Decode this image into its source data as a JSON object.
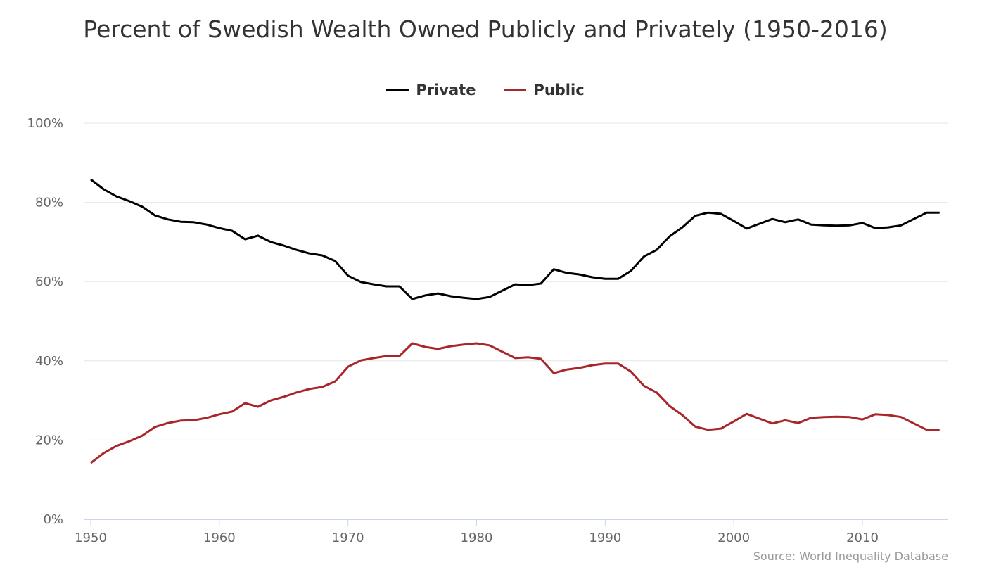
{
  "chart_data": {
    "type": "line",
    "title": "Percent of Swedish Wealth Owned Publicly and Privately (1950-2016)",
    "source": "Source: World Inequality Database",
    "legend_position": "top",
    "grid": true,
    "xlim": [
      1950,
      2016
    ],
    "ylim": [
      0,
      100
    ],
    "x_ticks": [
      "1950",
      "1960",
      "1970",
      "1980",
      "1990",
      "2000",
      "2010"
    ],
    "y_ticks": [
      "0%",
      "20%",
      "40%",
      "60%",
      "80%",
      "100%"
    ],
    "x": [
      1950,
      1951,
      1952,
      1953,
      1954,
      1955,
      1956,
      1957,
      1958,
      1959,
      1960,
      1961,
      1962,
      1963,
      1964,
      1965,
      1966,
      1967,
      1968,
      1969,
      1970,
      1971,
      1972,
      1973,
      1974,
      1975,
      1976,
      1977,
      1978,
      1979,
      1980,
      1981,
      1982,
      1983,
      1984,
      1985,
      1986,
      1987,
      1988,
      1989,
      1990,
      1991,
      1992,
      1993,
      1994,
      1995,
      1996,
      1997,
      1998,
      1999,
      2000,
      2001,
      2002,
      2003,
      2004,
      2005,
      2006,
      2007,
      2008,
      2009,
      2010,
      2011,
      2012,
      2013,
      2014,
      2015,
      2016
    ],
    "series": [
      {
        "name": "Private",
        "color": "#000000",
        "values": [
          85.8,
          83.3,
          81.5,
          80.3,
          78.9,
          76.7,
          75.7,
          75.1,
          75.0,
          74.4,
          73.5,
          72.8,
          70.7,
          71.6,
          70.0,
          69.1,
          68.0,
          67.1,
          66.6,
          65.2,
          61.5,
          59.9,
          59.3,
          58.8,
          58.8,
          55.6,
          56.5,
          57.0,
          56.3,
          55.9,
          55.6,
          56.1,
          57.7,
          59.3,
          59.1,
          59.5,
          63.1,
          62.2,
          61.8,
          61.1,
          60.7,
          60.7,
          62.7,
          66.3,
          68.0,
          71.4,
          73.7,
          76.6,
          77.4,
          77.1,
          75.3,
          73.4,
          74.6,
          75.8,
          75.0,
          75.7,
          74.4,
          74.2,
          74.1,
          74.2,
          74.8,
          73.5,
          73.7,
          74.2,
          75.8,
          77.4,
          77.4
        ]
      },
      {
        "name": "Public",
        "color": "#a8262a",
        "values": [
          14.2,
          16.7,
          18.5,
          19.7,
          21.1,
          23.3,
          24.3,
          24.9,
          25.0,
          25.6,
          26.5,
          27.2,
          29.3,
          28.4,
          30.0,
          30.9,
          32.0,
          32.9,
          33.4,
          34.8,
          38.5,
          40.1,
          40.7,
          41.2,
          41.2,
          44.4,
          43.5,
          43.0,
          43.7,
          44.1,
          44.4,
          43.9,
          42.3,
          40.7,
          40.9,
          40.5,
          36.9,
          37.8,
          38.2,
          38.9,
          39.3,
          39.3,
          37.3,
          33.7,
          32.0,
          28.6,
          26.3,
          23.4,
          22.6,
          22.9,
          24.7,
          26.6,
          25.4,
          24.2,
          25.0,
          24.3,
          25.6,
          25.8,
          25.9,
          25.8,
          25.2,
          26.5,
          26.3,
          25.8,
          24.2,
          22.6,
          22.6
        ]
      }
    ]
  }
}
